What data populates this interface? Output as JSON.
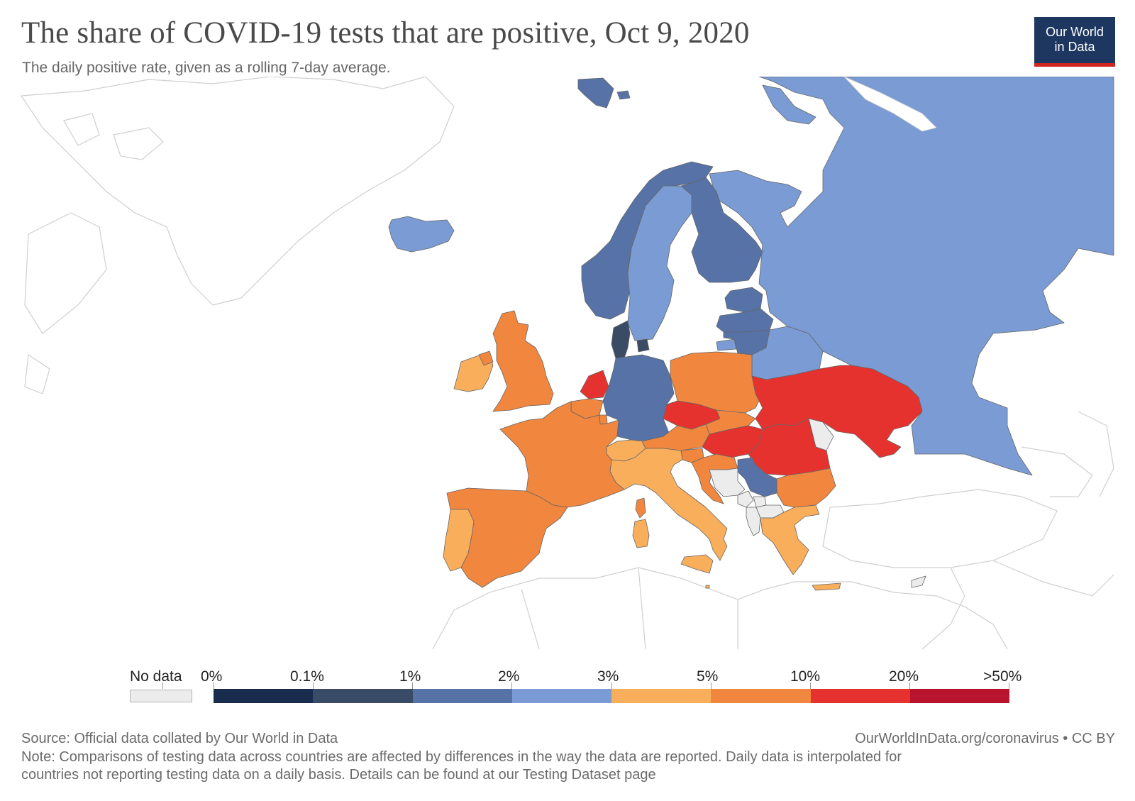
{
  "header": {
    "title": "The share of COVID-19 tests that are positive, Oct 9, 2020",
    "subtitle": "The daily positive rate, given as a rolling 7-day average."
  },
  "logo": {
    "line1": "Our World",
    "line2": "in Data"
  },
  "colors": {
    "no_data": "#ececec",
    "outline": "#cfcfcf",
    "border": "#666666",
    "bins": [
      "#1a2c4d",
      "#3a4b66",
      "#5672a6",
      "#7a9bd3",
      "#f9ae5c",
      "#f1863f",
      "#e5322f",
      "#b8142e"
    ]
  },
  "legend": {
    "no_data_label": "No data",
    "bins": [
      {
        "range": "0%–0.1%",
        "color": "#1a2c4d"
      },
      {
        "range": "0.1%–1%",
        "color": "#3a4b66"
      },
      {
        "range": "1%–2%",
        "color": "#5672a6"
      },
      {
        "range": "2%–3%",
        "color": "#7a9bd3"
      },
      {
        "range": "3%–5%",
        "color": "#f9ae5c"
      },
      {
        "range": "5%–10%",
        "color": "#f1863f"
      },
      {
        "range": "10%–20%",
        "color": "#e5322f"
      },
      {
        "range": "20%–50%",
        "color": "#b8142e"
      }
    ],
    "ticks": [
      "0%",
      "0.1%",
      "1%",
      "2%",
      "3%",
      "5%",
      "10%",
      "20%",
      ">50%"
    ]
  },
  "map_data": {
    "region": "Europe",
    "date": "Oct 9, 2020",
    "countries": [
      {
        "id": "svalbard",
        "bin": "1%–2%"
      },
      {
        "id": "norway",
        "bin": "1%–2%"
      },
      {
        "id": "finland",
        "bin": "1%–2%"
      },
      {
        "id": "sweden",
        "bin": "2%–3%"
      },
      {
        "id": "iceland",
        "bin": "2%–3%"
      },
      {
        "id": "russia",
        "bin": "2%–3%"
      },
      {
        "id": "belarus",
        "bin": "2%–3%"
      },
      {
        "id": "estonia",
        "bin": "1%–2%"
      },
      {
        "id": "latvia",
        "bin": "1%–2%"
      },
      {
        "id": "lithuania",
        "bin": "1%–2%"
      },
      {
        "id": "denmark",
        "bin": "0.1%–1%"
      },
      {
        "id": "germany",
        "bin": "1%–2%"
      },
      {
        "id": "serbia",
        "bin": "1%–2%"
      },
      {
        "id": "ireland",
        "bin": "3%–5%"
      },
      {
        "id": "united-kingdom",
        "bin": "5%–10%"
      },
      {
        "id": "france",
        "bin": "5%–10%"
      },
      {
        "id": "spain",
        "bin": "5%–10%"
      },
      {
        "id": "portugal",
        "bin": "3%–5%"
      },
      {
        "id": "netherlands",
        "bin": "10%–20%"
      },
      {
        "id": "belgium",
        "bin": "5%–10%"
      },
      {
        "id": "luxembourg",
        "bin": "5%–10%"
      },
      {
        "id": "switzerland",
        "bin": "3%–5%"
      },
      {
        "id": "italy",
        "bin": "3%–5%"
      },
      {
        "id": "austria",
        "bin": "5%–10%"
      },
      {
        "id": "czechia",
        "bin": "10%–20%"
      },
      {
        "id": "poland",
        "bin": "5%–10%"
      },
      {
        "id": "slovakia",
        "bin": "5%–10%"
      },
      {
        "id": "hungary",
        "bin": "10%–20%"
      },
      {
        "id": "romania",
        "bin": "10%–20%"
      },
      {
        "id": "ukraine",
        "bin": "10%–20%"
      },
      {
        "id": "moldova",
        "bin": "No data"
      },
      {
        "id": "slovenia",
        "bin": "5%–10%"
      },
      {
        "id": "croatia",
        "bin": "5%–10%"
      },
      {
        "id": "bosnia",
        "bin": "No data"
      },
      {
        "id": "montenegro",
        "bin": "No data"
      },
      {
        "id": "kosovo",
        "bin": "No data"
      },
      {
        "id": "albania",
        "bin": "No data"
      },
      {
        "id": "north-macedonia",
        "bin": "No data"
      },
      {
        "id": "bulgaria",
        "bin": "5%–10%"
      },
      {
        "id": "greece",
        "bin": "3%–5%"
      },
      {
        "id": "cyprus",
        "bin": "No data"
      },
      {
        "id": "malta",
        "bin": "3%–5%"
      }
    ]
  },
  "footer": {
    "source": "Source: Official data collated by Our World in Data",
    "url": "OurWorldInData.org/coronavirus • CC BY",
    "note_line1": "Note: Comparisons of testing data across countries are affected by differences in the way the data are reported. Daily data is interpolated for",
    "note_line2": "countries not reporting testing data on a daily basis. Details can be found at our Testing Dataset page"
  }
}
